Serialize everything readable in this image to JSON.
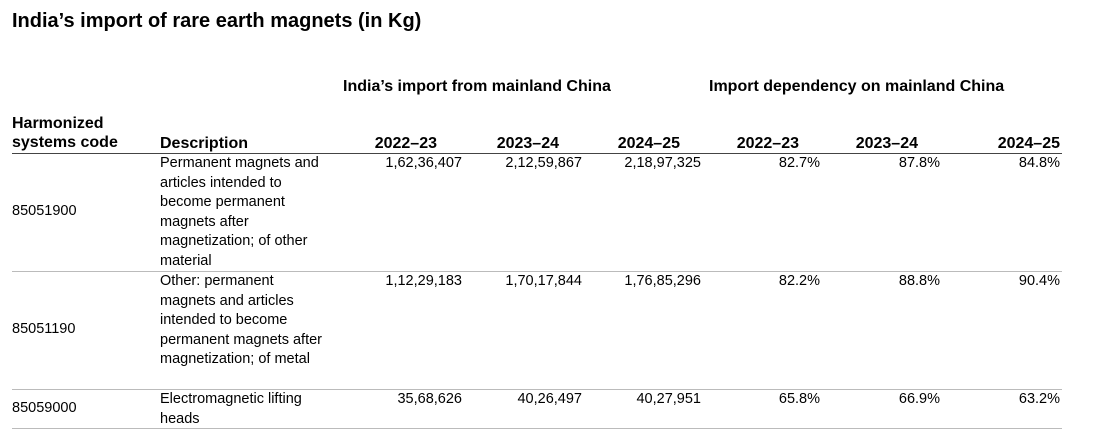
{
  "title": "India’s import of rare earth magnets (in Kg)",
  "group_headers": [
    "India’s import from mainland China",
    "Import dependency on mainland China"
  ],
  "columns": [
    "Harmonized systems code",
    "Description",
    "2022–23",
    "2023–24",
    "2024–25",
    "2022–23",
    "2023–24",
    "2024–25"
  ],
  "rows": [
    [
      "85051900",
      "Permanent magnets and articles intended to become permanent magnets after magnetization; of other material",
      "1,62,36,407",
      "2,12,59,867",
      "2,18,97,325",
      "82.7%",
      "87.8%",
      "84.8%"
    ],
    [
      "85051190",
      "Other: permanent magnets and articles intended to become permanent magnets after magnetization; of metal",
      "1,12,29,183",
      "1,70,17,844",
      "1,76,85,296",
      "82.2%",
      "88.8%",
      "90.4%"
    ],
    [
      "85059000",
      "Electromagnetic lifting heads",
      "35,68,626",
      "40,26,497",
      "40,27,951",
      "65.8%",
      "66.9%",
      "63.2%"
    ]
  ]
}
